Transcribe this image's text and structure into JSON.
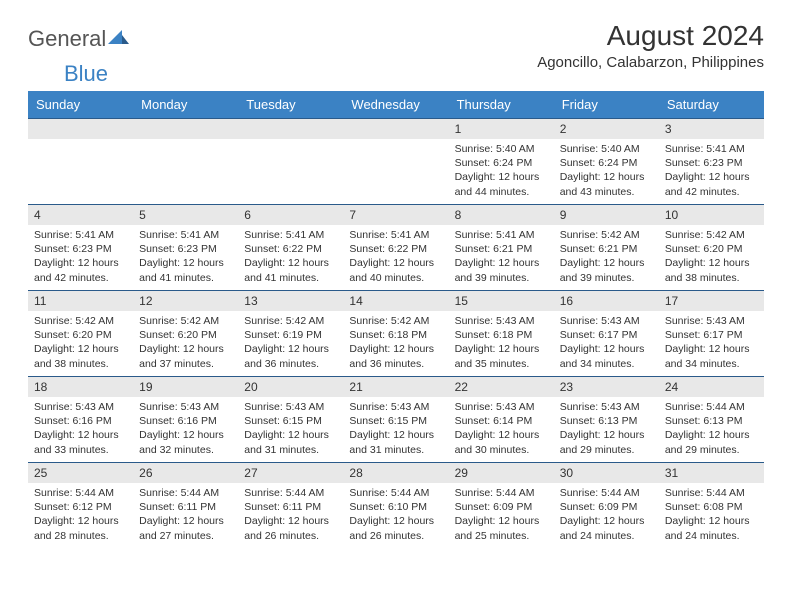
{
  "logo": {
    "text_general": "General",
    "text_blue": "Blue"
  },
  "header": {
    "month_title": "August 2024",
    "location": "Agoncillo, Calabarzon, Philippines"
  },
  "colors": {
    "header_bg": "#3b82c4",
    "header_text": "#ffffff",
    "day_number_bg": "#e8e8e8",
    "border": "#2a5a8a",
    "text": "#333333",
    "logo_gray": "#555555",
    "logo_blue": "#3b82c4"
  },
  "typography": {
    "title_fontsize": 28,
    "location_fontsize": 15,
    "weekday_fontsize": 13,
    "daynum_fontsize": 12,
    "content_fontsize": 10.5
  },
  "weekdays": [
    "Sunday",
    "Monday",
    "Tuesday",
    "Wednesday",
    "Thursday",
    "Friday",
    "Saturday"
  ],
  "weeks": [
    [
      null,
      null,
      null,
      null,
      {
        "n": "1",
        "sr": "5:40 AM",
        "ss": "6:24 PM",
        "dl": "12 hours and 44 minutes."
      },
      {
        "n": "2",
        "sr": "5:40 AM",
        "ss": "6:24 PM",
        "dl": "12 hours and 43 minutes."
      },
      {
        "n": "3",
        "sr": "5:41 AM",
        "ss": "6:23 PM",
        "dl": "12 hours and 42 minutes."
      }
    ],
    [
      {
        "n": "4",
        "sr": "5:41 AM",
        "ss": "6:23 PM",
        "dl": "12 hours and 42 minutes."
      },
      {
        "n": "5",
        "sr": "5:41 AM",
        "ss": "6:23 PM",
        "dl": "12 hours and 41 minutes."
      },
      {
        "n": "6",
        "sr": "5:41 AM",
        "ss": "6:22 PM",
        "dl": "12 hours and 41 minutes."
      },
      {
        "n": "7",
        "sr": "5:41 AM",
        "ss": "6:22 PM",
        "dl": "12 hours and 40 minutes."
      },
      {
        "n": "8",
        "sr": "5:41 AM",
        "ss": "6:21 PM",
        "dl": "12 hours and 39 minutes."
      },
      {
        "n": "9",
        "sr": "5:42 AM",
        "ss": "6:21 PM",
        "dl": "12 hours and 39 minutes."
      },
      {
        "n": "10",
        "sr": "5:42 AM",
        "ss": "6:20 PM",
        "dl": "12 hours and 38 minutes."
      }
    ],
    [
      {
        "n": "11",
        "sr": "5:42 AM",
        "ss": "6:20 PM",
        "dl": "12 hours and 38 minutes."
      },
      {
        "n": "12",
        "sr": "5:42 AM",
        "ss": "6:20 PM",
        "dl": "12 hours and 37 minutes."
      },
      {
        "n": "13",
        "sr": "5:42 AM",
        "ss": "6:19 PM",
        "dl": "12 hours and 36 minutes."
      },
      {
        "n": "14",
        "sr": "5:42 AM",
        "ss": "6:18 PM",
        "dl": "12 hours and 36 minutes."
      },
      {
        "n": "15",
        "sr": "5:43 AM",
        "ss": "6:18 PM",
        "dl": "12 hours and 35 minutes."
      },
      {
        "n": "16",
        "sr": "5:43 AM",
        "ss": "6:17 PM",
        "dl": "12 hours and 34 minutes."
      },
      {
        "n": "17",
        "sr": "5:43 AM",
        "ss": "6:17 PM",
        "dl": "12 hours and 34 minutes."
      }
    ],
    [
      {
        "n": "18",
        "sr": "5:43 AM",
        "ss": "6:16 PM",
        "dl": "12 hours and 33 minutes."
      },
      {
        "n": "19",
        "sr": "5:43 AM",
        "ss": "6:16 PM",
        "dl": "12 hours and 32 minutes."
      },
      {
        "n": "20",
        "sr": "5:43 AM",
        "ss": "6:15 PM",
        "dl": "12 hours and 31 minutes."
      },
      {
        "n": "21",
        "sr": "5:43 AM",
        "ss": "6:15 PM",
        "dl": "12 hours and 31 minutes."
      },
      {
        "n": "22",
        "sr": "5:43 AM",
        "ss": "6:14 PM",
        "dl": "12 hours and 30 minutes."
      },
      {
        "n": "23",
        "sr": "5:43 AM",
        "ss": "6:13 PM",
        "dl": "12 hours and 29 minutes."
      },
      {
        "n": "24",
        "sr": "5:44 AM",
        "ss": "6:13 PM",
        "dl": "12 hours and 29 minutes."
      }
    ],
    [
      {
        "n": "25",
        "sr": "5:44 AM",
        "ss": "6:12 PM",
        "dl": "12 hours and 28 minutes."
      },
      {
        "n": "26",
        "sr": "5:44 AM",
        "ss": "6:11 PM",
        "dl": "12 hours and 27 minutes."
      },
      {
        "n": "27",
        "sr": "5:44 AM",
        "ss": "6:11 PM",
        "dl": "12 hours and 26 minutes."
      },
      {
        "n": "28",
        "sr": "5:44 AM",
        "ss": "6:10 PM",
        "dl": "12 hours and 26 minutes."
      },
      {
        "n": "29",
        "sr": "5:44 AM",
        "ss": "6:09 PM",
        "dl": "12 hours and 25 minutes."
      },
      {
        "n": "30",
        "sr": "5:44 AM",
        "ss": "6:09 PM",
        "dl": "12 hours and 24 minutes."
      },
      {
        "n": "31",
        "sr": "5:44 AM",
        "ss": "6:08 PM",
        "dl": "12 hours and 24 minutes."
      }
    ]
  ],
  "labels": {
    "sunrise": "Sunrise:",
    "sunset": "Sunset:",
    "daylight": "Daylight:"
  }
}
